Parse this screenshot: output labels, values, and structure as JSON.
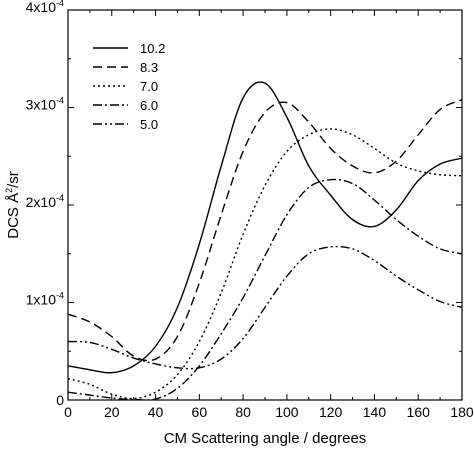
{
  "chart_data": {
    "type": "line",
    "xlabel": "CM Scattering angle / degrees",
    "ylabel_prefix": "DCS Å",
    "ylabel_sup": "2",
    "ylabel_suffix": "/sr",
    "xlim": [
      0,
      180
    ],
    "ylim": [
      0,
      0.0004
    ],
    "x_ticks": [
      0,
      20,
      40,
      60,
      80,
      100,
      120,
      140,
      160,
      180
    ],
    "x_tick_labels": [
      "0",
      "20",
      "40",
      "60",
      "80",
      "100",
      "120",
      "140",
      "160",
      "180"
    ],
    "y_ticks": [
      {
        "value": 0,
        "base": "0",
        "exp": ""
      },
      {
        "value": 0.0001,
        "base": "1x10",
        "exp": "-4"
      },
      {
        "value": 0.0002,
        "base": "2x10",
        "exp": "-4"
      },
      {
        "value": 0.0003,
        "base": "3x10",
        "exp": "-4"
      },
      {
        "value": 0.0004,
        "base": "4x10",
        "exp": "-4"
      }
    ],
    "legend_position": "top-left",
    "grid": false,
    "series": [
      {
        "name": "10.2",
        "dash": "",
        "x": [
          0,
          10,
          20,
          30,
          40,
          50,
          60,
          70,
          80,
          90,
          100,
          110,
          120,
          130,
          140,
          150,
          160,
          170,
          180
        ],
        "y": [
          3.5e-05,
          3.1e-05,
          2.8e-05,
          3.5e-05,
          5.5e-05,
          9.5e-05,
          0.00016,
          0.00024,
          0.00031,
          0.000325,
          0.00029,
          0.00024,
          0.00021,
          0.000185,
          0.000178,
          0.000195,
          0.000225,
          0.000242,
          0.000248
        ]
      },
      {
        "name": "8.3",
        "dash": "9,5",
        "x": [
          0,
          10,
          20,
          30,
          40,
          50,
          60,
          70,
          80,
          90,
          100,
          110,
          120,
          130,
          140,
          150,
          160,
          170,
          180
        ],
        "y": [
          8.8e-05,
          8e-05,
          6.5e-05,
          4.5e-05,
          4.2e-05,
          6.5e-05,
          0.00012,
          0.00019,
          0.000255,
          0.000295,
          0.000305,
          0.000285,
          0.000258,
          0.00024,
          0.000233,
          0.000245,
          0.000272,
          0.000298,
          0.000308
        ]
      },
      {
        "name": "7.0",
        "dash": "2,3",
        "x": [
          0,
          10,
          20,
          30,
          40,
          50,
          60,
          70,
          80,
          90,
          100,
          110,
          120,
          130,
          140,
          150,
          160,
          170,
          180
        ],
        "y": [
          2.2e-05,
          1.6e-05,
          6e-06,
          1.5e-06,
          8e-06,
          2.6e-05,
          6e-05,
          0.00011,
          0.00017,
          0.00022,
          0.000255,
          0.000272,
          0.000278,
          0.000272,
          0.000258,
          0.000243,
          0.000235,
          0.000231,
          0.00023
        ]
      },
      {
        "name": "6.0",
        "dash": "9,3,2,3",
        "x": [
          0,
          10,
          20,
          30,
          40,
          50,
          60,
          70,
          80,
          90,
          100,
          110,
          120,
          130,
          140,
          150,
          160,
          170,
          180
        ],
        "y": [
          8e-06,
          5e-06,
          2e-06,
          5e-07,
          1e-06,
          1.2e-05,
          3.5e-05,
          6.8e-05,
          0.000105,
          0.000148,
          0.00019,
          0.000218,
          0.000226,
          0.000222,
          0.000205,
          0.000185,
          0.000168,
          0.000155,
          0.00015
        ]
      },
      {
        "name": "5.0",
        "dash": "9,3,2,3,2,3",
        "x": [
          0,
          10,
          20,
          30,
          40,
          50,
          60,
          70,
          80,
          90,
          100,
          110,
          120,
          130,
          140,
          150,
          160,
          170,
          180
        ],
        "y": [
          6e-05,
          5.9e-05,
          5.2e-05,
          4.3e-05,
          3.7e-05,
          3.3e-05,
          3.3e-05,
          4.2e-05,
          6.3e-05,
          9.5e-05,
          0.000127,
          0.00015,
          0.000157,
          0.000155,
          0.000143,
          0.000127,
          0.000113,
          0.000101,
          9.5e-05
        ]
      }
    ]
  }
}
